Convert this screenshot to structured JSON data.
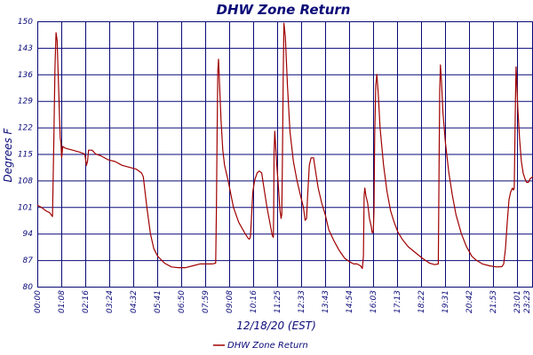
{
  "colors": {
    "grid": "#0a0a78",
    "series": "#a00000",
    "text": "#0a0a78",
    "background": "#ffffff"
  },
  "chart_data": {
    "type": "line",
    "title": "DHW Zone Return",
    "xlabel": "12/18/20 (EST)",
    "ylabel": "Degrees F",
    "ylim": [
      80,
      150
    ],
    "yticks": [
      "150",
      "143",
      "136",
      "129",
      "122",
      "115",
      "108",
      "101",
      "94",
      "87",
      "80"
    ],
    "xlim": [
      "00:00",
      "23:23"
    ],
    "xticks": [
      "00:00",
      "01:08",
      "02:16",
      "03:24",
      "04:32",
      "05:41",
      "06:50",
      "07:59",
      "09:08",
      "10:16",
      "11:25",
      "12:33",
      "13:43",
      "14:54",
      "16:03",
      "17:13",
      "18:22",
      "19:31",
      "20:42",
      "21:53",
      "23:01",
      "23:23"
    ],
    "grid": true,
    "legend_position": "bottom-center",
    "series": [
      {
        "name": "DHW Zone Return",
        "points": [
          [
            "00:00",
            101.5
          ],
          [
            "00:10",
            101
          ],
          [
            "00:25",
            100
          ],
          [
            "00:35",
            99.5
          ],
          [
            "00:43",
            98.5
          ],
          [
            "00:47",
            120
          ],
          [
            "00:50",
            138
          ],
          [
            "00:53",
            147
          ],
          [
            "00:56",
            145
          ],
          [
            "01:00",
            133
          ],
          [
            "01:03",
            124
          ],
          [
            "01:05",
            119
          ],
          [
            "01:07",
            118
          ],
          [
            "01:09",
            114
          ],
          [
            "01:12",
            117
          ],
          [
            "01:20",
            116.5
          ],
          [
            "01:40",
            116
          ],
          [
            "02:00",
            115.5
          ],
          [
            "02:14",
            115
          ],
          [
            "02:16",
            114
          ],
          [
            "02:19",
            112
          ],
          [
            "02:22",
            113
          ],
          [
            "02:25",
            116
          ],
          [
            "02:35",
            116
          ],
          [
            "02:45",
            115
          ],
          [
            "03:00",
            114.5
          ],
          [
            "03:20",
            113.5
          ],
          [
            "03:40",
            113
          ],
          [
            "04:00",
            112
          ],
          [
            "04:20",
            111.5
          ],
          [
            "04:40",
            111
          ],
          [
            "04:55",
            110
          ],
          [
            "05:00",
            109
          ],
          [
            "05:10",
            101
          ],
          [
            "05:20",
            94
          ],
          [
            "05:30",
            90
          ],
          [
            "05:41",
            88
          ],
          [
            "06:00",
            86.2
          ],
          [
            "06:20",
            85.2
          ],
          [
            "06:40",
            85
          ],
          [
            "07:00",
            85
          ],
          [
            "07:20",
            85.5
          ],
          [
            "07:40",
            86
          ],
          [
            "08:00",
            86
          ],
          [
            "08:15",
            86
          ],
          [
            "08:25",
            86.2
          ],
          [
            "08:27",
            100
          ],
          [
            "08:29",
            120
          ],
          [
            "08:31",
            137
          ],
          [
            "08:33",
            140
          ],
          [
            "08:36",
            133
          ],
          [
            "08:40",
            124
          ],
          [
            "08:45",
            116
          ],
          [
            "08:50",
            112
          ],
          [
            "09:00",
            108
          ],
          [
            "09:15",
            101
          ],
          [
            "09:30",
            97
          ],
          [
            "09:45",
            94.5
          ],
          [
            "09:55",
            93
          ],
          [
            "10:00",
            92.5
          ],
          [
            "10:03",
            93
          ],
          [
            "10:05",
            96
          ],
          [
            "10:10",
            105
          ],
          [
            "10:15",
            108
          ],
          [
            "10:22",
            110
          ],
          [
            "10:28",
            110.5
          ],
          [
            "10:35",
            110
          ],
          [
            "10:40",
            107
          ],
          [
            "10:50",
            101
          ],
          [
            "11:00",
            96
          ],
          [
            "11:05",
            93.5
          ],
          [
            "11:08",
            93
          ],
          [
            "11:09",
            100
          ],
          [
            "11:10",
            115
          ],
          [
            "11:12",
            121
          ],
          [
            "11:14",
            118
          ],
          [
            "11:17",
            113
          ],
          [
            "11:22",
            107
          ],
          [
            "11:27",
            100
          ],
          [
            "11:30",
            98
          ],
          [
            "11:32",
            99
          ],
          [
            "11:34",
            115
          ],
          [
            "11:36",
            135
          ],
          [
            "11:38",
            149.5
          ],
          [
            "11:42",
            146
          ],
          [
            "11:48",
            133
          ],
          [
            "11:55",
            121
          ],
          [
            "12:05",
            113
          ],
          [
            "12:15",
            108
          ],
          [
            "12:25",
            104
          ],
          [
            "12:33",
            101
          ],
          [
            "12:38",
            97.5
          ],
          [
            "12:42",
            98
          ],
          [
            "12:45",
            104
          ],
          [
            "12:50",
            112
          ],
          [
            "12:55",
            114
          ],
          [
            "13:02",
            114
          ],
          [
            "13:05",
            112
          ],
          [
            "13:15",
            106
          ],
          [
            "13:25",
            102
          ],
          [
            "13:35",
            99
          ],
          [
            "13:45",
            95
          ],
          [
            "14:00",
            92
          ],
          [
            "14:15",
            89.5
          ],
          [
            "14:30",
            87.5
          ],
          [
            "14:45",
            86.5
          ],
          [
            "14:55",
            86
          ],
          [
            "15:05",
            86
          ],
          [
            "15:15",
            85.5
          ],
          [
            "15:20",
            84.8
          ],
          [
            "15:23",
            88
          ],
          [
            "15:25",
            104
          ],
          [
            "15:27",
            106
          ],
          [
            "15:30",
            104
          ],
          [
            "15:35",
            102
          ],
          [
            "15:40",
            98
          ],
          [
            "15:45",
            96
          ],
          [
            "15:48",
            94.2
          ],
          [
            "15:51",
            94.5
          ],
          [
            "15:53",
            100
          ],
          [
            "15:55",
            120
          ],
          [
            "15:58",
            133
          ],
          [
            "16:01",
            136
          ],
          [
            "16:05",
            131
          ],
          [
            "16:10",
            122
          ],
          [
            "16:20",
            112
          ],
          [
            "16:30",
            105
          ],
          [
            "16:40",
            100
          ],
          [
            "16:50",
            97
          ],
          [
            "17:00",
            94.5
          ],
          [
            "17:13",
            92.5
          ],
          [
            "17:30",
            90.5
          ],
          [
            "17:50",
            89
          ],
          [
            "18:10",
            87.5
          ],
          [
            "18:30",
            86.2
          ],
          [
            "18:45",
            85.8
          ],
          [
            "18:55",
            86
          ],
          [
            "18:57",
            110
          ],
          [
            "18:59",
            132
          ],
          [
            "19:01",
            138.5
          ],
          [
            "19:04",
            134
          ],
          [
            "19:08",
            126
          ],
          [
            "19:15",
            118
          ],
          [
            "19:25",
            110
          ],
          [
            "19:35",
            104
          ],
          [
            "19:45",
            99
          ],
          [
            "20:00",
            94
          ],
          [
            "20:15",
            90.5
          ],
          [
            "20:30",
            88
          ],
          [
            "20:42",
            87
          ],
          [
            "21:00",
            86
          ],
          [
            "21:20",
            85.5
          ],
          [
            "21:40",
            85.2
          ],
          [
            "21:55",
            85.3
          ],
          [
            "22:00",
            86
          ],
          [
            "22:05",
            90
          ],
          [
            "22:10",
            97
          ],
          [
            "22:15",
            103
          ],
          [
            "22:20",
            105
          ],
          [
            "22:25",
            106
          ],
          [
            "22:28",
            105.5
          ],
          [
            "22:30",
            106
          ],
          [
            "22:32",
            120
          ],
          [
            "22:34",
            133
          ],
          [
            "22:35",
            138
          ],
          [
            "22:37",
            134
          ],
          [
            "22:40",
            127
          ],
          [
            "22:45",
            119
          ],
          [
            "22:50",
            113
          ],
          [
            "22:55",
            110
          ],
          [
            "23:00",
            108.5
          ],
          [
            "23:05",
            107.5
          ],
          [
            "23:10",
            107.5
          ],
          [
            "23:15",
            108.5
          ],
          [
            "23:23",
            109
          ]
        ]
      }
    ]
  }
}
